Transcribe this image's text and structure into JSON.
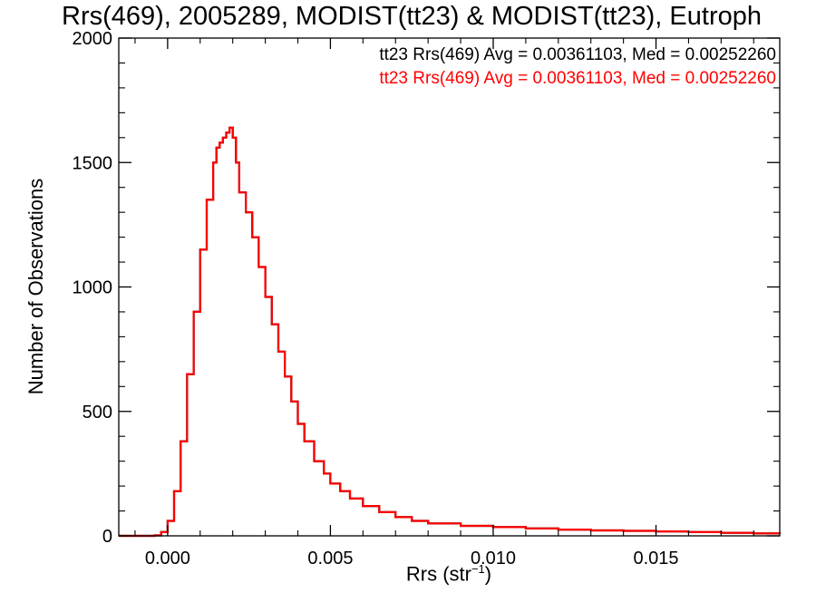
{
  "chart_data": {
    "type": "histogram",
    "title": "Rrs(469), 2005289, MODIST(tt23) & MODIST(tt23), Eutroph",
    "xlabel": "Rrs (str",
    "xlabel_sup": "−1",
    "xlabel_close": ")",
    "ylabel": "Number of Observations",
    "xlim": [
      -0.0015,
      0.0188
    ],
    "ylim": [
      0,
      2000
    ],
    "xticks": [
      0.0,
      0.005,
      0.01,
      0.015
    ],
    "xtick_labels": [
      "0.000",
      "0.005",
      "0.010",
      "0.015"
    ],
    "yticks": [
      0,
      500,
      1000,
      1500,
      2000
    ],
    "ytick_labels": [
      "0",
      "500",
      "1000",
      "1500",
      "2000"
    ],
    "grid": false,
    "legend_position": "top-right",
    "series": [
      {
        "name": "tt23 Rrs(469) Avg = 0.00361103, Med = 0.00252260",
        "color": "#000000",
        "hidden_behind_next": true,
        "x": [
          -0.0015,
          -0.0012,
          -0.0009,
          -0.0006,
          -0.0004,
          -0.0002,
          0.0,
          0.0002,
          0.0004,
          0.0006,
          0.0008,
          0.001,
          0.0012,
          0.0014,
          0.0015,
          0.0016,
          0.0017,
          0.0018,
          0.0019,
          0.002,
          0.0021,
          0.0022,
          0.0024,
          0.0026,
          0.0028,
          0.003,
          0.0032,
          0.0034,
          0.0036,
          0.0038,
          0.004,
          0.0042,
          0.0045,
          0.0048,
          0.005,
          0.0053,
          0.0056,
          0.006,
          0.0065,
          0.007,
          0.0075,
          0.008,
          0.009,
          0.01,
          0.011,
          0.012,
          0.013,
          0.014,
          0.015,
          0.016,
          0.017,
          0.018,
          0.0188
        ],
        "values": [
          0,
          0,
          0,
          0,
          2,
          15,
          60,
          180,
          380,
          650,
          900,
          1150,
          1350,
          1500,
          1560,
          1580,
          1600,
          1620,
          1640,
          1600,
          1500,
          1380,
          1300,
          1200,
          1080,
          960,
          850,
          740,
          640,
          540,
          450,
          380,
          300,
          250,
          210,
          180,
          150,
          120,
          95,
          75,
          60,
          50,
          40,
          35,
          30,
          25,
          22,
          20,
          18,
          15,
          12,
          10,
          8
        ]
      },
      {
        "name": "tt23 Rrs(469) Avg = 0.00361103, Med = 0.00252260",
        "color": "#ff0000",
        "x": [
          -0.0015,
          -0.0012,
          -0.0009,
          -0.0006,
          -0.0004,
          -0.0002,
          0.0,
          0.0002,
          0.0004,
          0.0006,
          0.0008,
          0.001,
          0.0012,
          0.0014,
          0.0015,
          0.0016,
          0.0017,
          0.0018,
          0.0019,
          0.002,
          0.0021,
          0.0022,
          0.0024,
          0.0026,
          0.0028,
          0.003,
          0.0032,
          0.0034,
          0.0036,
          0.0038,
          0.004,
          0.0042,
          0.0045,
          0.0048,
          0.005,
          0.0053,
          0.0056,
          0.006,
          0.0065,
          0.007,
          0.0075,
          0.008,
          0.009,
          0.01,
          0.011,
          0.012,
          0.013,
          0.014,
          0.015,
          0.016,
          0.017,
          0.018,
          0.0188
        ],
        "values": [
          0,
          0,
          0,
          0,
          2,
          15,
          60,
          180,
          380,
          650,
          900,
          1150,
          1350,
          1500,
          1560,
          1580,
          1600,
          1620,
          1640,
          1600,
          1500,
          1380,
          1300,
          1200,
          1080,
          960,
          850,
          740,
          640,
          540,
          450,
          380,
          300,
          250,
          210,
          180,
          150,
          120,
          95,
          75,
          60,
          50,
          40,
          35,
          30,
          25,
          22,
          20,
          18,
          15,
          12,
          10,
          8
        ]
      }
    ]
  }
}
